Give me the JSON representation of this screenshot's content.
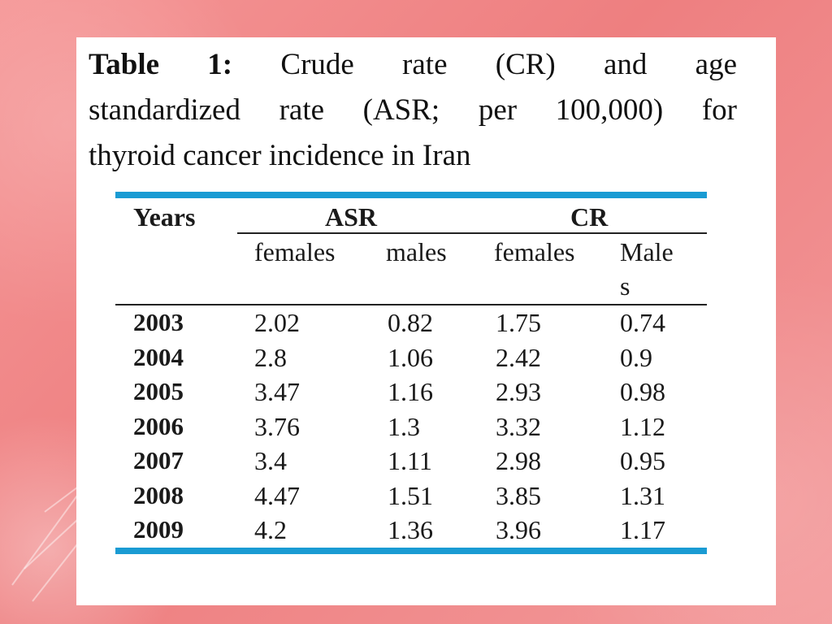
{
  "caption": {
    "label": "Table 1:",
    "line1_rest": "Crude rate (CR) and age",
    "line2": "standardized rate (ASR; per 100,000) for",
    "line3": "thyroid cancer incidence in Iran"
  },
  "table": {
    "header": {
      "years": "Years",
      "asr": "ASR",
      "cr": "CR",
      "asr_females": "females",
      "asr_males": "males",
      "cr_females": "females",
      "cr_males_line1": "Male",
      "cr_males_line2": "s"
    },
    "rows": [
      {
        "year": "2003",
        "asr_f": "2.02",
        "asr_m": "0.82",
        "cr_f": "1.75",
        "cr_m": "0.74"
      },
      {
        "year": "2004",
        "asr_f": "2.8",
        "asr_m": "1.06",
        "cr_f": "2.42",
        "cr_m": "0.9"
      },
      {
        "year": "2005",
        "asr_f": "3.47",
        "asr_m": "1.16",
        "cr_f": "2.93",
        "cr_m": "0.98"
      },
      {
        "year": "2006",
        "asr_f": "3.76",
        "asr_m": "1.3",
        "cr_f": "3.32",
        "cr_m": "1.12"
      },
      {
        "year": "2007",
        "asr_f": "3.4",
        "asr_m": "1.11",
        "cr_f": "2.98",
        "cr_m": "0.95"
      },
      {
        "year": "2008",
        "asr_f": "4.47",
        "asr_m": "1.51",
        "cr_f": "3.85",
        "cr_m": "1.31"
      },
      {
        "year": "2009",
        "asr_f": "4.2",
        "asr_m": "1.36",
        "cr_f": "3.96",
        "cr_m": "1.17"
      }
    ]
  },
  "colors": {
    "background": "#f28a8a",
    "rule": "#1a9bd3",
    "card": "#ffffff"
  }
}
